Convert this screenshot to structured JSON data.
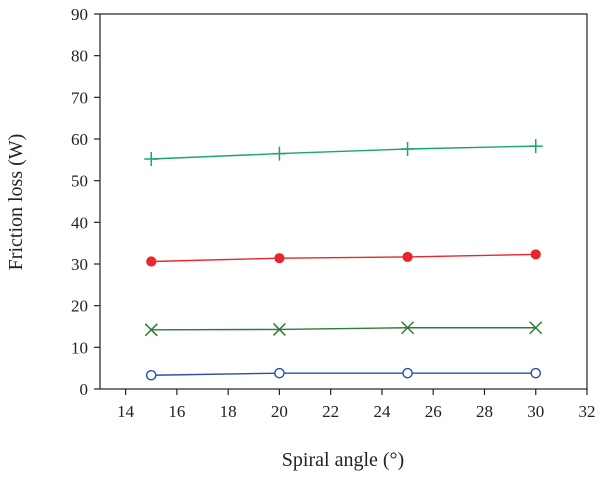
{
  "chart_data": {
    "type": "line",
    "title": "",
    "xlabel": "Spiral angle (°)",
    "ylabel": "Friction loss (W)",
    "xlim": [
      13,
      32
    ],
    "ylim": [
      0,
      90
    ],
    "xticks": [
      "14",
      "16",
      "18",
      "20",
      "22",
      "24",
      "26",
      "28",
      "30",
      "32"
    ],
    "yticks": [
      "0",
      "10",
      "20",
      "30",
      "40",
      "50",
      "60",
      "70",
      "80",
      "90"
    ],
    "grid": false,
    "legend": "none",
    "x": [
      15,
      20,
      25,
      30
    ],
    "series": [
      {
        "marker": "plus",
        "color": "#19a66c",
        "values": [
          55.2,
          56.5,
          57.6,
          58.3
        ]
      },
      {
        "marker": "filled-circle",
        "color": "#e8262b",
        "values": [
          30.6,
          31.4,
          31.7,
          32.3
        ]
      },
      {
        "marker": "x",
        "color": "#2a7d3c",
        "values": [
          14.2,
          14.3,
          14.7,
          14.7
        ]
      },
      {
        "marker": "open-circle",
        "color": "#2b4fa8",
        "values": [
          3.3,
          3.8,
          3.8,
          3.8
        ]
      }
    ]
  }
}
